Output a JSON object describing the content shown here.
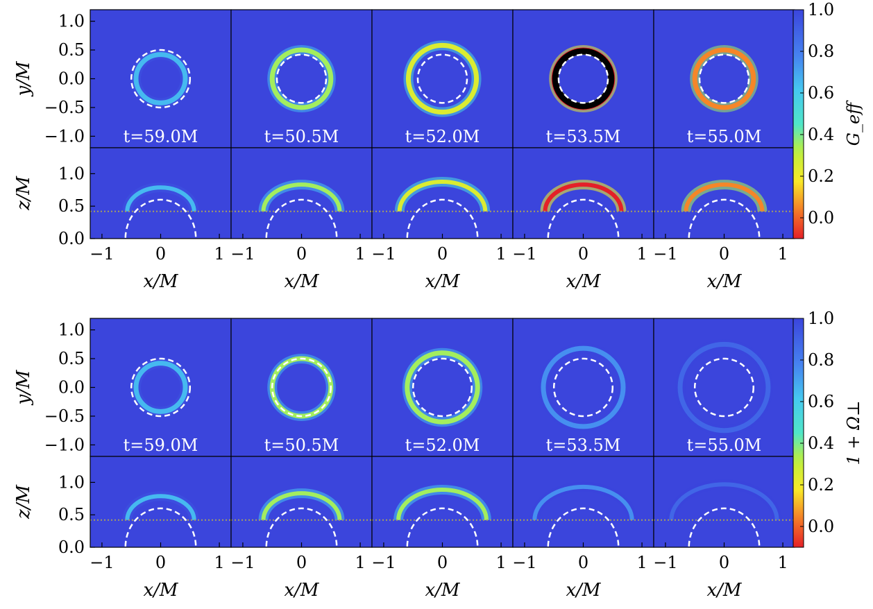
{
  "chart_data": [
    {
      "type": "heatmap",
      "panel": "top",
      "colorbar": {
        "label": "G_eff",
        "ticks": [
          "1.0",
          "0.8",
          "0.6",
          "0.4",
          "0.2",
          "0.0"
        ],
        "range": [
          -0.1,
          1.0
        ]
      },
      "times": [
        "t=59.0M",
        "t=50.5M",
        "t=52.0M",
        "t=53.5M",
        "t=55.0M"
      ],
      "xy_ylabel": "y/M",
      "xz_ylabel": "z/M",
      "xlabel": "x/M",
      "xy_yticks": [
        "1.0",
        "0.5",
        "0.0",
        "−0.5",
        "−1.0"
      ],
      "xz_yticks": [
        "1.0",
        "0.5",
        "0.0"
      ],
      "xticks": [
        "−1",
        "0",
        "1"
      ],
      "xlim": [
        -1.2,
        1.2
      ],
      "xy_ylim": [
        -1.2,
        1.2
      ],
      "xz_ylim": [
        0.0,
        1.4
      ],
      "dashed_circle_radius_xy": [
        0.5,
        0.42,
        0.42,
        0.42,
        0.42
      ],
      "dashed_circle_radius_xz": 0.6,
      "horizon_dotted_z": 0.42,
      "ring_radius": [
        0.42,
        0.5,
        0.58,
        0.5,
        0.5
      ],
      "ring_value": [
        0.65,
        0.35,
        0.25,
        -0.1,
        0.05
      ]
    },
    {
      "type": "heatmap",
      "panel": "bottom",
      "colorbar": {
        "label": "1 + Ω⊥",
        "ticks": [
          "1.0",
          "0.8",
          "0.6",
          "0.4",
          "0.2",
          "0.0"
        ],
        "range": [
          -0.1,
          1.0
        ]
      },
      "times": [
        "t=59.0M",
        "t=50.5M",
        "t=52.0M",
        "t=53.5M",
        "t=55.0M"
      ],
      "xy_ylabel": "y/M",
      "xz_ylabel": "z/M",
      "xlabel": "x/M",
      "xy_yticks": [
        "1.0",
        "0.5",
        "0.0",
        "−0.5",
        "−1.0"
      ],
      "xz_yticks": [
        "1.0",
        "0.5",
        "0.0"
      ],
      "xticks": [
        "−1",
        "0",
        "1"
      ],
      "xlim": [
        -1.2,
        1.2
      ],
      "xy_ylim": [
        -1.2,
        1.2
      ],
      "xz_ylim": [
        0.0,
        1.4
      ],
      "dashed_circle_radius_xy": [
        0.5,
        0.5,
        0.5,
        0.5,
        0.5
      ],
      "dashed_circle_radius_xz": 0.6,
      "horizon_dotted_z": 0.42,
      "ring_radius": [
        0.42,
        0.5,
        0.6,
        0.68,
        0.75
      ],
      "ring_value": [
        0.65,
        0.35,
        0.35,
        0.75,
        0.88
      ]
    }
  ],
  "colors": {
    "background": "#3b45dc",
    "dashed": "#ffffff",
    "dotted": "#a8a060"
  }
}
